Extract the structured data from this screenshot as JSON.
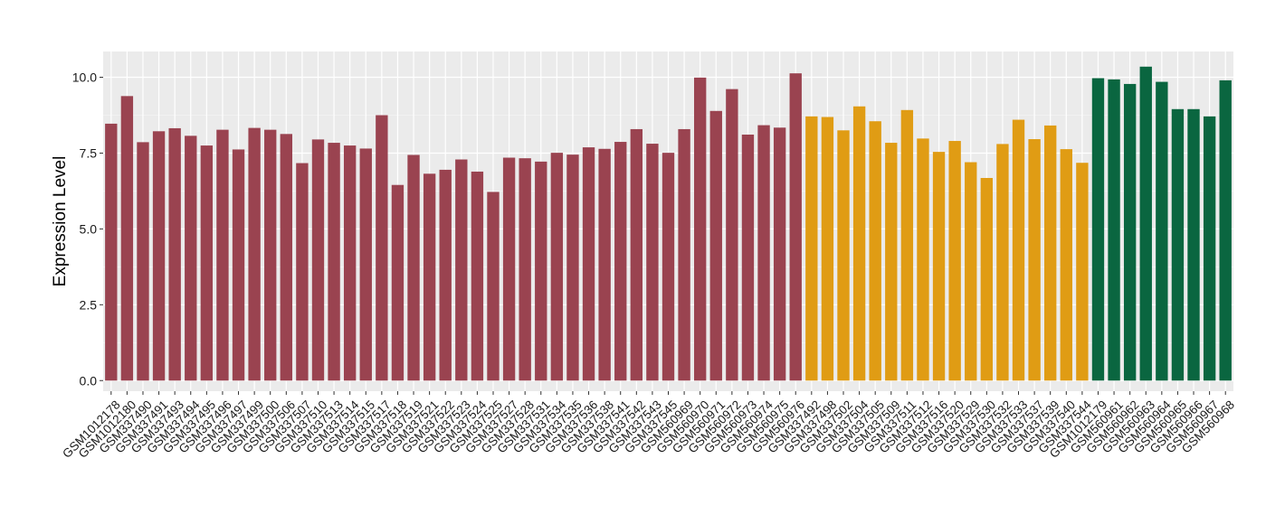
{
  "chart_data": {
    "type": "bar",
    "ylabel": "Expression Level",
    "xlabel": "",
    "ylim": [
      -0.35,
      10.85
    ],
    "yticks": [
      0.0,
      2.5,
      5.0,
      7.5,
      10.0
    ],
    "ytick_labels": [
      "0.0",
      "2.5",
      "5.0",
      "7.5",
      "10.0"
    ],
    "grid": true,
    "legend": "none",
    "colors": {
      "group1": "#9a4350",
      "group2": "#e09c14",
      "group3": "#0a6640",
      "panel": "#ebebeb",
      "grid": "#ffffff"
    },
    "categories": [
      "GSM1012178",
      "GSM1012180",
      "GSM337490",
      "GSM337491",
      "GSM337493",
      "GSM337494",
      "GSM337495",
      "GSM337496",
      "GSM337497",
      "GSM337499",
      "GSM337500",
      "GSM337506",
      "GSM337507",
      "GSM337510",
      "GSM337513",
      "GSM337514",
      "GSM337515",
      "GSM337517",
      "GSM337518",
      "GSM337519",
      "GSM337521",
      "GSM337522",
      "GSM337523",
      "GSM337524",
      "GSM337525",
      "GSM337527",
      "GSM337528",
      "GSM337531",
      "GSM337534",
      "GSM337535",
      "GSM337536",
      "GSM337538",
      "GSM337541",
      "GSM337542",
      "GSM337543",
      "GSM337545",
      "GSM560969",
      "GSM560970",
      "GSM560971",
      "GSM560972",
      "GSM560973",
      "GSM560974",
      "GSM560975",
      "GSM560976",
      "GSM337492",
      "GSM337498",
      "GSM337502",
      "GSM337504",
      "GSM337505",
      "GSM337509",
      "GSM337511",
      "GSM337512",
      "GSM337516",
      "GSM337520",
      "GSM337529",
      "GSM337530",
      "GSM337532",
      "GSM337533",
      "GSM337537",
      "GSM337539",
      "GSM337540",
      "GSM337544",
      "GSM1012179",
      "GSM560961",
      "GSM560962",
      "GSM560963",
      "GSM560964",
      "GSM560965",
      "GSM560966",
      "GSM560967",
      "GSM560968"
    ],
    "values": [
      8.47,
      9.38,
      7.86,
      8.22,
      8.32,
      8.07,
      7.75,
      8.27,
      7.62,
      8.33,
      8.27,
      8.13,
      7.17,
      7.95,
      7.84,
      7.75,
      7.65,
      8.75,
      6.45,
      7.44,
      6.82,
      6.95,
      7.29,
      6.89,
      6.22,
      7.35,
      7.33,
      7.22,
      7.51,
      7.45,
      7.69,
      7.64,
      7.87,
      8.29,
      7.81,
      7.51,
      8.29,
      9.99,
      8.89,
      9.61,
      8.11,
      8.42,
      8.34,
      10.13,
      8.71,
      8.69,
      8.25,
      9.04,
      8.55,
      7.84,
      8.92,
      7.98,
      7.54,
      7.9,
      7.2,
      6.68,
      7.8,
      8.6,
      7.96,
      8.41,
      7.63,
      7.18,
      9.97,
      9.93,
      9.78,
      10.35,
      9.85,
      8.95,
      8.95,
      8.71,
      9.9
    ],
    "groups": [
      1,
      1,
      1,
      1,
      1,
      1,
      1,
      1,
      1,
      1,
      1,
      1,
      1,
      1,
      1,
      1,
      1,
      1,
      1,
      1,
      1,
      1,
      1,
      1,
      1,
      1,
      1,
      1,
      1,
      1,
      1,
      1,
      1,
      1,
      1,
      1,
      1,
      1,
      1,
      1,
      1,
      1,
      1,
      1,
      2,
      2,
      2,
      2,
      2,
      2,
      2,
      2,
      2,
      2,
      2,
      2,
      2,
      2,
      2,
      2,
      2,
      2,
      3,
      3,
      3,
      3,
      3,
      3,
      3,
      3,
      3
    ]
  }
}
